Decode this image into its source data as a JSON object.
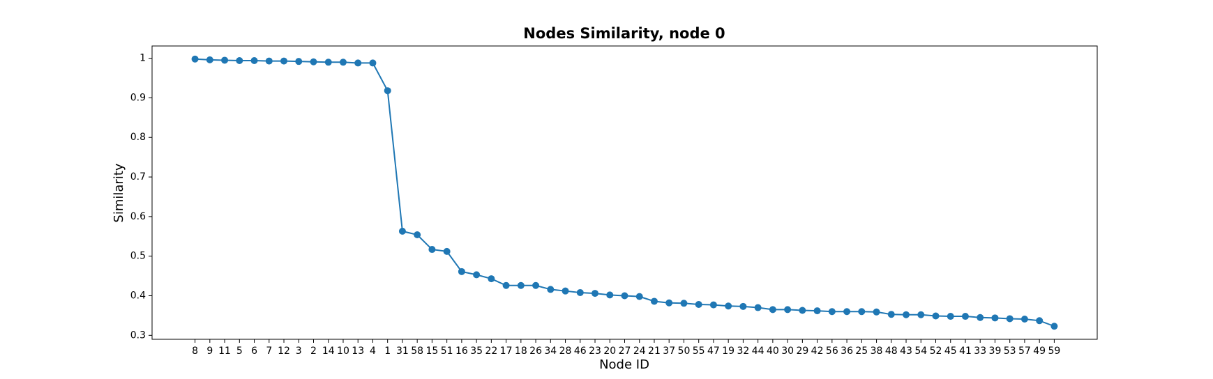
{
  "chart_data": {
    "type": "line",
    "title": "Nodes Similarity, node 0",
    "xlabel": "Node ID",
    "ylabel": "Similarity",
    "categories": [
      "8",
      "9",
      "11",
      "5",
      "6",
      "7",
      "12",
      "3",
      "2",
      "14",
      "10",
      "13",
      "4",
      "1",
      "31",
      "58",
      "15",
      "51",
      "16",
      "35",
      "22",
      "17",
      "18",
      "26",
      "34",
      "28",
      "46",
      "23",
      "20",
      "27",
      "24",
      "21",
      "37",
      "50",
      "55",
      "47",
      "19",
      "32",
      "44",
      "40",
      "30",
      "29",
      "42",
      "56",
      "36",
      "25",
      "38",
      "48",
      "43",
      "54",
      "52",
      "45",
      "41",
      "33",
      "39",
      "53",
      "57",
      "49",
      "59"
    ],
    "series": [
      {
        "name": "Similarity",
        "color": "#1f77b4",
        "values": [
          0.998,
          0.996,
          0.995,
          0.994,
          0.994,
          0.993,
          0.993,
          0.992,
          0.991,
          0.99,
          0.99,
          0.988,
          0.988,
          0.918,
          0.563,
          0.554,
          0.517,
          0.512,
          0.461,
          0.453,
          0.443,
          0.426,
          0.426,
          0.426,
          0.416,
          0.412,
          0.408,
          0.406,
          0.402,
          0.4,
          0.398,
          0.386,
          0.382,
          0.381,
          0.378,
          0.377,
          0.374,
          0.373,
          0.37,
          0.365,
          0.365,
          0.363,
          0.362,
          0.36,
          0.36,
          0.36,
          0.359,
          0.353,
          0.352,
          0.352,
          0.349,
          0.348,
          0.348,
          0.345,
          0.344,
          0.342,
          0.341,
          0.337,
          0.323
        ]
      }
    ],
    "ylim": [
      0.29,
      1.031
    ],
    "yticks": [
      0.3,
      0.4,
      0.5,
      0.6,
      0.7,
      0.8,
      0.9,
      1.0
    ],
    "grid": false
  }
}
